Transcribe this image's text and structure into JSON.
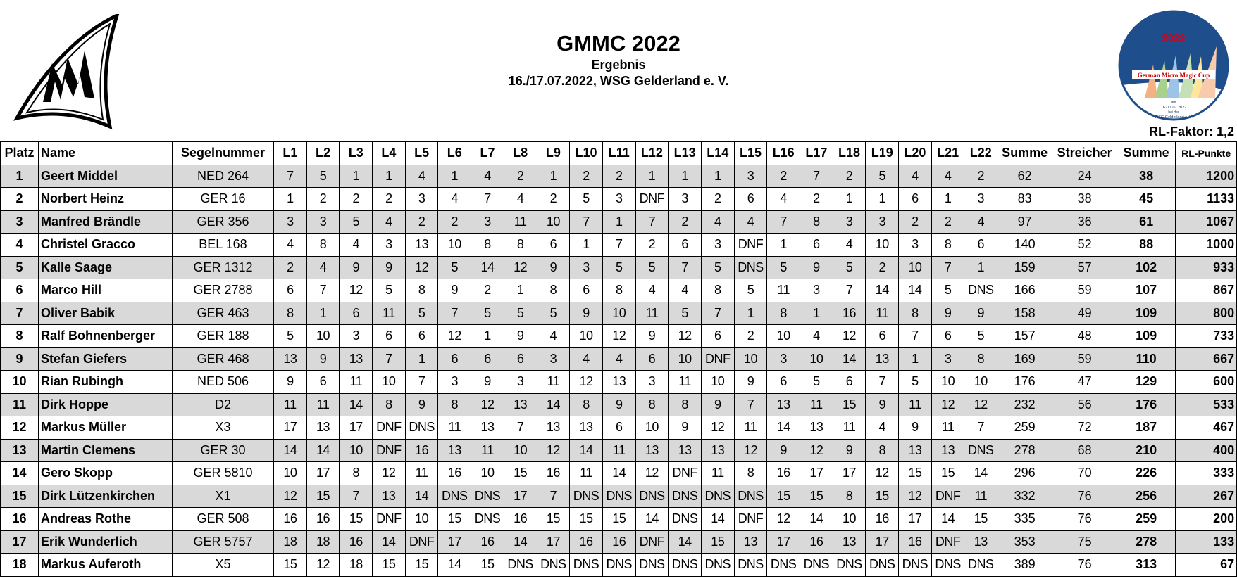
{
  "header": {
    "title": "GMMC 2022",
    "subtitle": "Ergebnis",
    "date_venue": "16./17.07.2022, WSG Gelderland e. V.",
    "rl_factor": "RL-Faktor: 1,2"
  },
  "logo_right": {
    "year": "2022",
    "name": "German Micro Magic Cup",
    "line1": "am",
    "line2": "16./17.07.2022",
    "line3": "bei der",
    "line4": "WSG Gelderland e. V.",
    "colors": {
      "circle": "#1f4e8c",
      "year": "#d0021b"
    }
  },
  "logo_left": {
    "text": "MM"
  },
  "columns": [
    "Platz",
    "Name",
    "Segelnummer",
    "L1",
    "L2",
    "L3",
    "L4",
    "L5",
    "L6",
    "L7",
    "L8",
    "L9",
    "L10",
    "L11",
    "L12",
    "L13",
    "L14",
    "L15",
    "L16",
    "L17",
    "L18",
    "L19",
    "L20",
    "L21",
    "L22",
    "Summe",
    "Streicher",
    "Summe",
    "RL-Punkte"
  ],
  "rows": [
    {
      "platz": "1",
      "name": "Geert Middel",
      "sail": "NED 264",
      "races": [
        "7",
        "5",
        "1",
        "1",
        "4",
        "1",
        "4",
        "2",
        "1",
        "2",
        "2",
        "1",
        "1",
        "1",
        "3",
        "2",
        "7",
        "2",
        "5",
        "4",
        "4",
        "2"
      ],
      "summe": "62",
      "streicher": "24",
      "netto": "38",
      "rl": "1200"
    },
    {
      "platz": "2",
      "name": "Norbert Heinz",
      "sail": "GER 16",
      "races": [
        "1",
        "2",
        "2",
        "2",
        "3",
        "4",
        "7",
        "4",
        "2",
        "5",
        "3",
        "DNF",
        "3",
        "2",
        "6",
        "4",
        "2",
        "1",
        "1",
        "6",
        "1",
        "3"
      ],
      "summe": "83",
      "streicher": "38",
      "netto": "45",
      "rl": "1133"
    },
    {
      "platz": "3",
      "name": "Manfred Brändle",
      "sail": "GER 356",
      "races": [
        "3",
        "3",
        "5",
        "4",
        "2",
        "2",
        "3",
        "11",
        "10",
        "7",
        "1",
        "7",
        "2",
        "4",
        "4",
        "7",
        "8",
        "3",
        "3",
        "2",
        "2",
        "4"
      ],
      "summe": "97",
      "streicher": "36",
      "netto": "61",
      "rl": "1067"
    },
    {
      "platz": "4",
      "name": "Christel Gracco",
      "sail": "BEL 168",
      "races": [
        "4",
        "8",
        "4",
        "3",
        "13",
        "10",
        "8",
        "8",
        "6",
        "1",
        "7",
        "2",
        "6",
        "3",
        "DNF",
        "1",
        "6",
        "4",
        "10",
        "3",
        "8",
        "6"
      ],
      "summe": "140",
      "streicher": "52",
      "netto": "88",
      "rl": "1000"
    },
    {
      "platz": "5",
      "name": "Kalle Saage",
      "sail": "GER 1312",
      "races": [
        "2",
        "4",
        "9",
        "9",
        "12",
        "5",
        "14",
        "12",
        "9",
        "3",
        "5",
        "5",
        "7",
        "5",
        "DNS",
        "5",
        "9",
        "5",
        "2",
        "10",
        "7",
        "1"
      ],
      "summe": "159",
      "streicher": "57",
      "netto": "102",
      "rl": "933"
    },
    {
      "platz": "6",
      "name": "Marco Hill",
      "sail": "GER 2788",
      "races": [
        "6",
        "7",
        "12",
        "5",
        "8",
        "9",
        "2",
        "1",
        "8",
        "6",
        "8",
        "4",
        "4",
        "8",
        "5",
        "11",
        "3",
        "7",
        "14",
        "14",
        "5",
        "DNS"
      ],
      "summe": "166",
      "streicher": "59",
      "netto": "107",
      "rl": "867"
    },
    {
      "platz": "7",
      "name": "Oliver Babik",
      "sail": "GER 463",
      "races": [
        "8",
        "1",
        "6",
        "11",
        "5",
        "7",
        "5",
        "5",
        "5",
        "9",
        "10",
        "11",
        "5",
        "7",
        "1",
        "8",
        "1",
        "16",
        "11",
        "8",
        "9",
        "9"
      ],
      "summe": "158",
      "streicher": "49",
      "netto": "109",
      "rl": "800"
    },
    {
      "platz": "8",
      "name": "Ralf Bohnenberger",
      "sail": "GER 188",
      "races": [
        "5",
        "10",
        "3",
        "6",
        "6",
        "12",
        "1",
        "9",
        "4",
        "10",
        "12",
        "9",
        "12",
        "6",
        "2",
        "10",
        "4",
        "12",
        "6",
        "7",
        "6",
        "5"
      ],
      "summe": "157",
      "streicher": "48",
      "netto": "109",
      "rl": "733"
    },
    {
      "platz": "9",
      "name": "Stefan Giefers",
      "sail": "GER 468",
      "races": [
        "13",
        "9",
        "13",
        "7",
        "1",
        "6",
        "6",
        "6",
        "3",
        "4",
        "4",
        "6",
        "10",
        "DNF",
        "10",
        "3",
        "10",
        "14",
        "13",
        "1",
        "3",
        "8"
      ],
      "summe": "169",
      "streicher": "59",
      "netto": "110",
      "rl": "667"
    },
    {
      "platz": "10",
      "name": "Rian Rubingh",
      "sail": "NED 506",
      "races": [
        "9",
        "6",
        "11",
        "10",
        "7",
        "3",
        "9",
        "3",
        "11",
        "12",
        "13",
        "3",
        "11",
        "10",
        "9",
        "6",
        "5",
        "6",
        "7",
        "5",
        "10",
        "10"
      ],
      "summe": "176",
      "streicher": "47",
      "netto": "129",
      "rl": "600"
    },
    {
      "platz": "11",
      "name": "Dirk Hoppe",
      "sail": "D2",
      "races": [
        "11",
        "11",
        "14",
        "8",
        "9",
        "8",
        "12",
        "13",
        "14",
        "8",
        "9",
        "8",
        "8",
        "9",
        "7",
        "13",
        "11",
        "15",
        "9",
        "11",
        "12",
        "12"
      ],
      "summe": "232",
      "streicher": "56",
      "netto": "176",
      "rl": "533"
    },
    {
      "platz": "12",
      "name": "Markus Müller",
      "sail": "X3",
      "races": [
        "17",
        "13",
        "17",
        "DNF",
        "DNS",
        "11",
        "13",
        "7",
        "13",
        "13",
        "6",
        "10",
        "9",
        "12",
        "11",
        "14",
        "13",
        "11",
        "4",
        "9",
        "11",
        "7"
      ],
      "summe": "259",
      "streicher": "72",
      "netto": "187",
      "rl": "467"
    },
    {
      "platz": "13",
      "name": "Martin Clemens",
      "sail": "GER 30",
      "races": [
        "14",
        "14",
        "10",
        "DNF",
        "16",
        "13",
        "11",
        "10",
        "12",
        "14",
        "11",
        "13",
        "13",
        "13",
        "12",
        "9",
        "12",
        "9",
        "8",
        "13",
        "13",
        "DNS"
      ],
      "summe": "278",
      "streicher": "68",
      "netto": "210",
      "rl": "400"
    },
    {
      "platz": "14",
      "name": "Gero Skopp",
      "sail": "GER 5810",
      "races": [
        "10",
        "17",
        "8",
        "12",
        "11",
        "16",
        "10",
        "15",
        "16",
        "11",
        "14",
        "12",
        "DNF",
        "11",
        "8",
        "16",
        "17",
        "17",
        "12",
        "15",
        "15",
        "14"
      ],
      "summe": "296",
      "streicher": "70",
      "netto": "226",
      "rl": "333"
    },
    {
      "platz": "15",
      "name": "Dirk Lützenkirchen",
      "sail": "X1",
      "races": [
        "12",
        "15",
        "7",
        "13",
        "14",
        "DNS",
        "DNS",
        "17",
        "7",
        "DNS",
        "DNS",
        "DNS",
        "DNS",
        "DNS",
        "DNS",
        "15",
        "15",
        "8",
        "15",
        "12",
        "DNF",
        "11"
      ],
      "summe": "332",
      "streicher": "76",
      "netto": "256",
      "rl": "267"
    },
    {
      "platz": "16",
      "name": "Andreas Rothe",
      "sail": "GER 508",
      "races": [
        "16",
        "16",
        "15",
        "DNF",
        "10",
        "15",
        "DNS",
        "16",
        "15",
        "15",
        "15",
        "14",
        "DNS",
        "14",
        "DNF",
        "12",
        "14",
        "10",
        "16",
        "17",
        "14",
        "15"
      ],
      "summe": "335",
      "streicher": "76",
      "netto": "259",
      "rl": "200"
    },
    {
      "platz": "17",
      "name": "Erik Wunderlich",
      "sail": "GER 5757",
      "races": [
        "18",
        "18",
        "16",
        "14",
        "DNF",
        "17",
        "16",
        "14",
        "17",
        "16",
        "16",
        "DNF",
        "14",
        "15",
        "13",
        "17",
        "16",
        "13",
        "17",
        "16",
        "DNF",
        "13"
      ],
      "summe": "353",
      "streicher": "75",
      "netto": "278",
      "rl": "133"
    },
    {
      "platz": "18",
      "name": "Markus Auferoth",
      "sail": "X5",
      "races": [
        "15",
        "12",
        "18",
        "15",
        "15",
        "14",
        "15",
        "DNS",
        "DNS",
        "DNS",
        "DNS",
        "DNS",
        "DNS",
        "DNS",
        "DNS",
        "DNS",
        "DNS",
        "DNS",
        "DNS",
        "DNS",
        "DNS",
        "DNS"
      ],
      "summe": "389",
      "streicher": "76",
      "netto": "313",
      "rl": "67"
    }
  ]
}
